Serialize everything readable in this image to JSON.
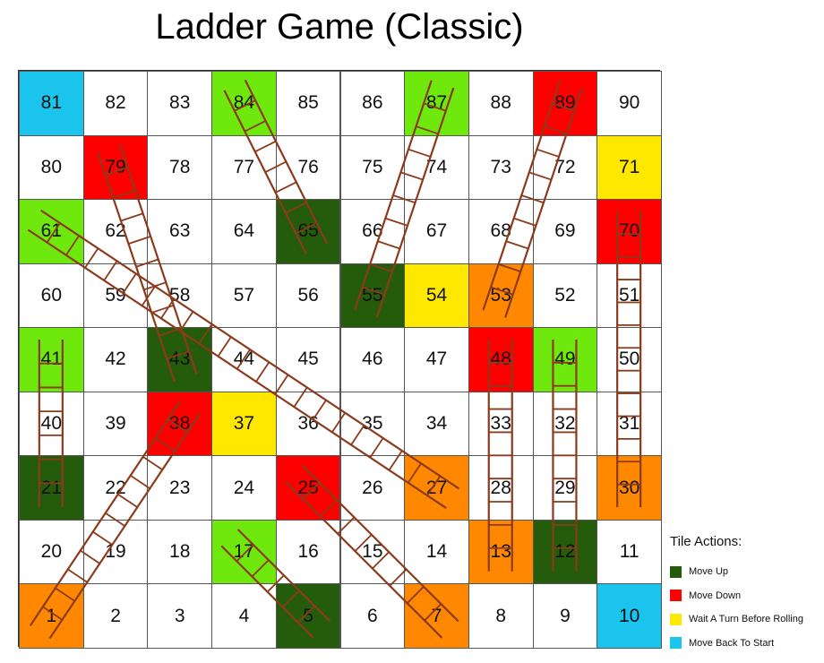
{
  "title": "Ladder Game (Classic)",
  "colors": {
    "light_green": "#6ee80d",
    "dark_green": "#245c0b",
    "red": "#ff0000",
    "yellow": "#ffe800",
    "orange": "#ff8800",
    "cyan": "#1bc4ec",
    "white": "#ffffff",
    "ladder": "#8b3a1c"
  },
  "board": {
    "rows": [
      [
        81,
        82,
        83,
        84,
        85,
        86,
        87,
        88,
        89,
        90
      ],
      [
        80,
        79,
        78,
        77,
        76,
        75,
        74,
        73,
        72,
        71
      ],
      [
        61,
        62,
        63,
        64,
        65,
        66,
        67,
        68,
        69,
        70
      ],
      [
        60,
        59,
        58,
        57,
        56,
        55,
        54,
        53,
        52,
        51
      ],
      [
        41,
        42,
        43,
        44,
        45,
        46,
        47,
        48,
        49,
        50
      ],
      [
        40,
        39,
        38,
        37,
        36,
        35,
        34,
        33,
        32,
        31
      ],
      [
        21,
        22,
        23,
        24,
        25,
        26,
        27,
        28,
        29,
        30
      ],
      [
        20,
        19,
        18,
        17,
        16,
        15,
        14,
        13,
        12,
        11
      ],
      [
        1,
        2,
        3,
        4,
        5,
        6,
        7,
        8,
        9,
        10
      ]
    ],
    "tile_colors": {
      "81": "cyan",
      "10": "cyan",
      "84": "light_green",
      "87": "light_green",
      "61": "light_green",
      "41": "light_green",
      "49": "light_green",
      "17": "light_green",
      "65": "dark_green",
      "55": "dark_green",
      "43": "dark_green",
      "21": "dark_green",
      "12": "dark_green",
      "5": "dark_green",
      "89": "red",
      "79": "red",
      "70": "red",
      "48": "red",
      "38": "red",
      "25": "red",
      "71": "yellow",
      "54": "yellow",
      "37": "yellow",
      "53": "orange",
      "30": "orange",
      "27": "orange",
      "13": "orange",
      "7": "orange",
      "1": "orange"
    }
  },
  "ladders": [
    {
      "from": 1,
      "to": 38
    },
    {
      "from": 21,
      "to": 41
    },
    {
      "from": 5,
      "to": 17
    },
    {
      "from": 7,
      "to": 25
    },
    {
      "from": 27,
      "to": 61
    },
    {
      "from": 55,
      "to": 87
    },
    {
      "from": 53,
      "to": 89
    },
    {
      "from": 43,
      "to": 79
    },
    {
      "from": 65,
      "to": 84
    },
    {
      "from": 13,
      "to": 48
    },
    {
      "from": 12,
      "to": 49
    },
    {
      "from": 30,
      "to": 70
    }
  ],
  "legend": {
    "title": "Tile Actions:",
    "items": [
      {
        "label": "Move Up",
        "color": "dark_green"
      },
      {
        "label": "Move Down",
        "color": "red"
      },
      {
        "label": "Wait A Turn Before Rolling",
        "color": "yellow"
      },
      {
        "label": "Move Back To Start",
        "color": "cyan"
      }
    ]
  }
}
